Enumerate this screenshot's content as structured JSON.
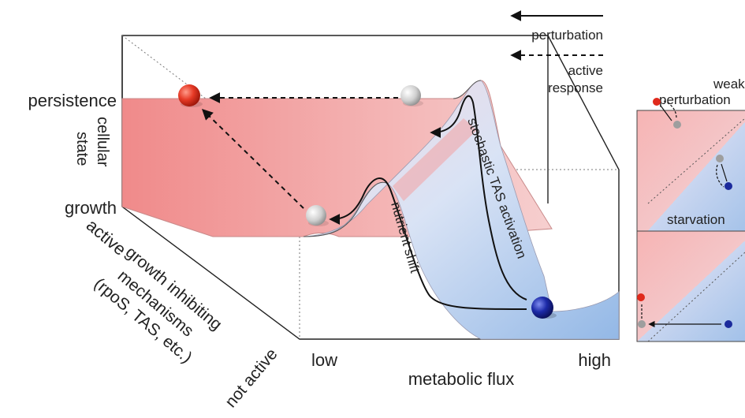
{
  "legend": {
    "perturbation_label": "perturbation",
    "active_response_line1": "active",
    "active_response_line2": "response"
  },
  "axes": {
    "state_high": "persistence",
    "state_axis_line1": "cellular",
    "state_axis_line2": "state",
    "state_low": "growth",
    "mech_high": "active",
    "mech_axis_line1": "growth inhibiting",
    "mech_axis_line2": "mechanisms",
    "mech_axis_line3": "(rpoS, TAS, etc.)",
    "mech_low": "not active",
    "flux_low": "low",
    "flux_high": "high",
    "flux_axis": "metabolic flux"
  },
  "paths": {
    "nutrient_shift": "nutrient shift",
    "stochastic": "stochastic TAS activation"
  },
  "panels": {
    "top_title_line1": "weak",
    "top_title_line2": "perturbation",
    "bottom_title": "starvation"
  },
  "colors": {
    "persistence_red": "#e8564a",
    "growth_blue": "#1e2a9c",
    "neutral_gray": "#bdbdbd"
  }
}
